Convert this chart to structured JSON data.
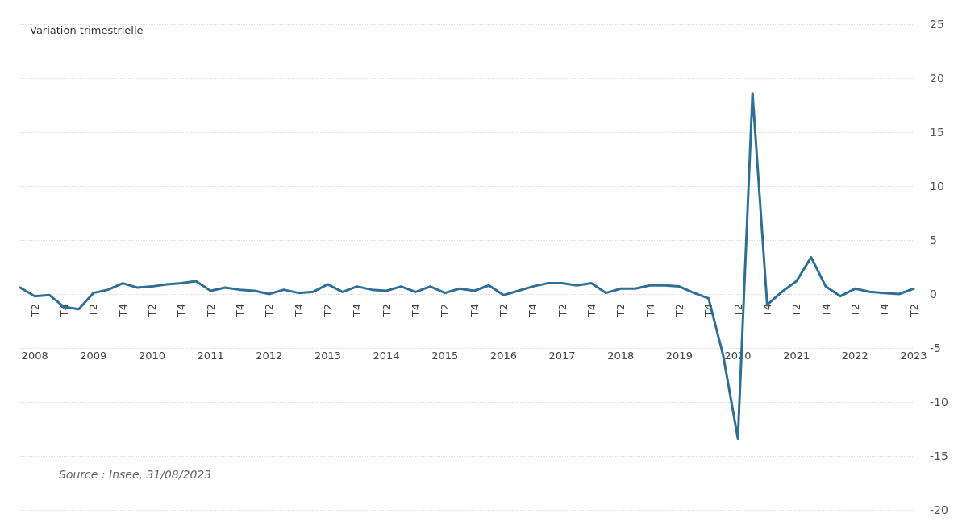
{
  "chart_data": {
    "type": "line",
    "title": "Variation trimestrielle",
    "categories": [
      null,
      "2008",
      null,
      null,
      null,
      "2009",
      null,
      null,
      null,
      "2010",
      null,
      null,
      null,
      "2011",
      null,
      null,
      null,
      "2012",
      null,
      null,
      null,
      "2013",
      null,
      null,
      null,
      "2014",
      null,
      null,
      null,
      "2015",
      null,
      null,
      null,
      "2016",
      null,
      null,
      null,
      "2017",
      null,
      null,
      null,
      "2018",
      null,
      null,
      null,
      "2019",
      null,
      null,
      null,
      "2020",
      null,
      null,
      null,
      "2021",
      null,
      null,
      null,
      "2022",
      null,
      null,
      null,
      "2023"
    ],
    "series": [
      {
        "color": "#2f6f96",
        "values": [
          0.6,
          -0.2,
          -0.1,
          -1.2,
          -1.4,
          0.1,
          0.4,
          1.0,
          0.6,
          0.7,
          0.9,
          1.0,
          1.2,
          0.3,
          0.6,
          0.4,
          0.3,
          0.0,
          0.4,
          0.1,
          0.2,
          0.9,
          0.2,
          0.7,
          0.4,
          0.3,
          0.7,
          0.2,
          0.7,
          0.1,
          0.5,
          0.3,
          0.8,
          -0.1,
          0.3,
          0.7,
          1.0,
          1.0,
          0.8,
          1.0,
          0.1,
          0.5,
          0.5,
          0.8,
          0.8,
          0.7,
          0.1,
          -0.4,
          -5.7,
          -13.4,
          18.6,
          -1.0,
          0.2,
          1.2,
          3.4,
          0.7,
          -0.2,
          0.5,
          0.2,
          0.1,
          0.0,
          0.5
        ]
      }
    ],
    "ylim": [
      -20,
      25
    ],
    "yticks": [
      -20,
      -15,
      -10,
      -5,
      0,
      5,
      10,
      15,
      20,
      25
    ],
    "grid": "y",
    "marker": "none",
    "line_style": "solid",
    "annotations": [
      {
        "text": "T2"
      },
      {
        "text": "T4"
      },
      {
        "text": "T2"
      },
      {
        "text": "T4"
      },
      {
        "text": "T2"
      },
      {
        "text": "T4"
      },
      {
        "text": "T2"
      },
      {
        "text": "T4"
      },
      {
        "text": "T2"
      },
      {
        "text": "T4"
      },
      {
        "text": "T2"
      },
      {
        "text": "T4"
      },
      {
        "text": "T2"
      },
      {
        "text": "T4"
      },
      {
        "text": "T2"
      },
      {
        "text": "T4"
      },
      {
        "text": "T2"
      },
      {
        "text": "T4"
      },
      {
        "text": "T2"
      },
      {
        "text": "T4"
      },
      {
        "text": "T2"
      },
      {
        "text": "T4"
      },
      {
        "text": "T2"
      },
      {
        "text": "T4"
      },
      {
        "text": "T2"
      },
      {
        "text": "T4"
      },
      {
        "text": "T2"
      },
      {
        "text": "T4"
      },
      {
        "text": "T2"
      },
      {
        "text": "T4"
      },
      {
        "text": "T2"
      },
      "Source : Insee, 31/08/2023"
    ]
  }
}
